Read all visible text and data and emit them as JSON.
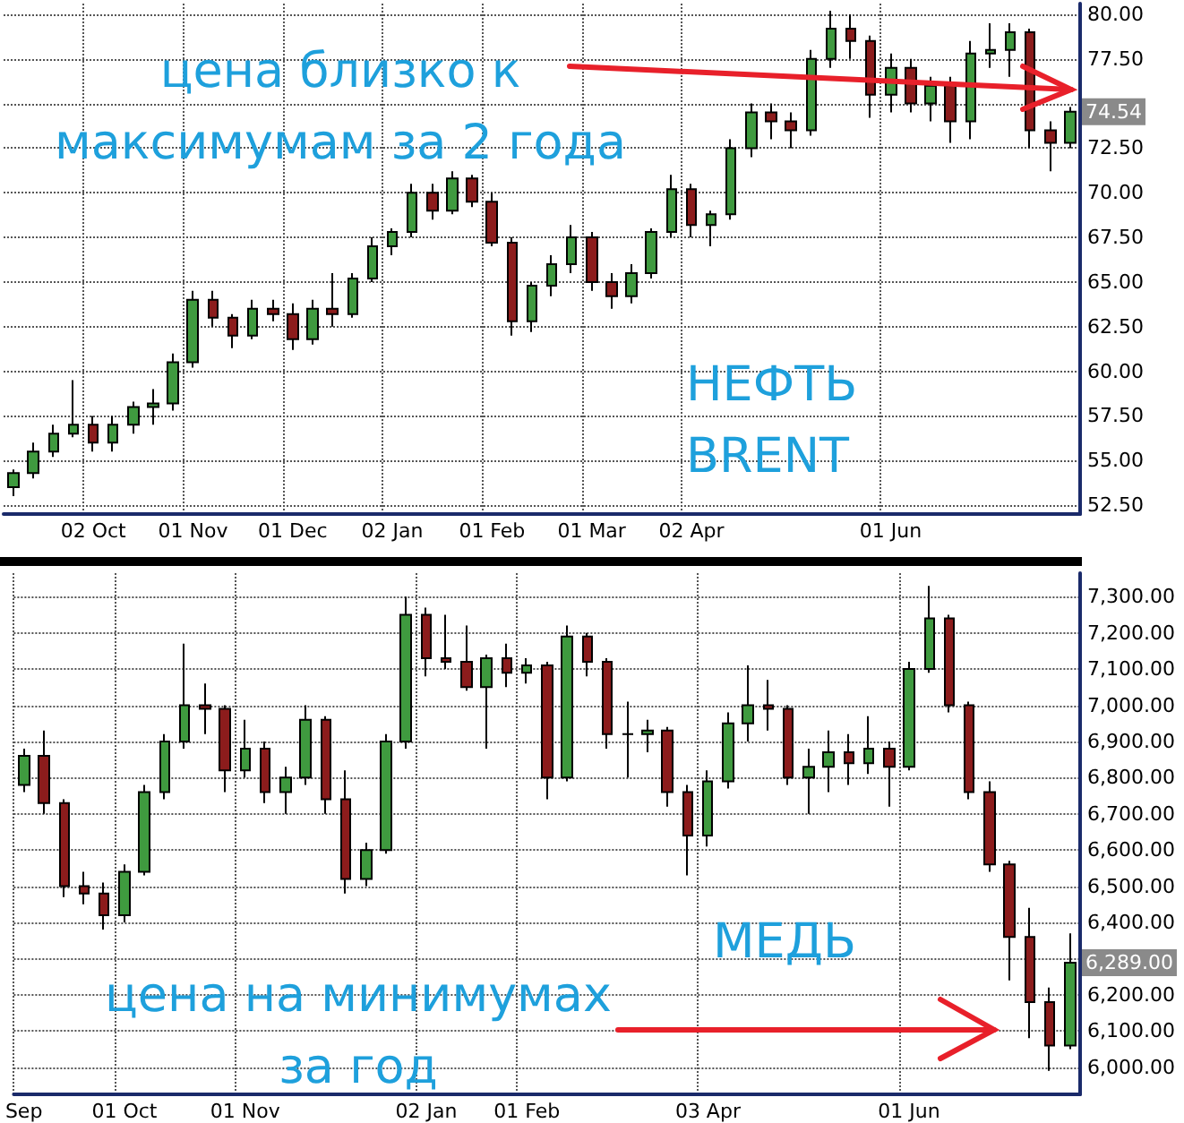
{
  "chart_data": [
    {
      "type": "candlestick",
      "categories": [
        null,
        null,
        null,
        null,
        "02 Oct",
        null,
        null,
        null,
        null,
        "01 Nov",
        null,
        null,
        null,
        null,
        "01 Dec",
        null,
        null,
        null,
        null,
        "02 Jan",
        null,
        null,
        null,
        null,
        "01 Feb",
        null,
        null,
        null,
        null,
        "01 Mar",
        null,
        null,
        null,
        null,
        "02 Apr",
        null,
        null,
        null,
        null,
        null,
        null,
        null,
        null,
        null,
        "01 Jun",
        null,
        null,
        null,
        null,
        null,
        null,
        null,
        null,
        null
      ],
      "ohlc": [
        [
          53.5,
          54.5,
          53,
          54.3
        ],
        [
          54.3,
          56,
          54,
          55.5
        ],
        [
          55.5,
          57,
          55.2,
          56.5
        ],
        [
          56.5,
          59.5,
          56.3,
          57
        ],
        [
          57,
          57.5,
          55.5,
          56
        ],
        [
          56,
          57.5,
          55.5,
          57
        ],
        [
          57,
          58.3,
          56.5,
          58
        ],
        [
          58,
          59,
          57,
          58.2
        ],
        [
          58.2,
          61,
          57.8,
          60.5
        ],
        [
          60.5,
          64.5,
          60.2,
          64
        ],
        [
          64,
          64.5,
          62.5,
          63
        ],
        [
          63,
          63.2,
          61.3,
          62
        ],
        [
          62,
          64,
          61.8,
          63.5
        ],
        [
          63.5,
          64,
          62.8,
          63.2
        ],
        [
          63.2,
          63.8,
          61.2,
          61.8
        ],
        [
          61.8,
          64,
          61.5,
          63.5
        ],
        [
          63.5,
          65.5,
          62.5,
          63.2
        ],
        [
          63.2,
          65.5,
          63,
          65.2
        ],
        [
          65.2,
          67.5,
          65,
          67
        ],
        [
          67,
          68,
          66.5,
          67.8
        ],
        [
          67.8,
          70.5,
          67.5,
          70
        ],
        [
          70,
          70.5,
          68.5,
          69
        ],
        [
          69,
          71.2,
          68.8,
          70.8
        ],
        [
          70.8,
          71,
          69.2,
          69.5
        ],
        [
          69.5,
          70,
          67,
          67.2
        ],
        [
          67.2,
          67.5,
          62,
          62.8
        ],
        [
          62.8,
          65,
          62.2,
          64.8
        ],
        [
          64.8,
          66.5,
          64.2,
          66
        ],
        [
          66,
          68.2,
          65.5,
          67.5
        ],
        [
          67.5,
          67.8,
          64.5,
          65
        ],
        [
          65,
          65.5,
          63.5,
          64.2
        ],
        [
          64.2,
          66,
          63.8,
          65.5
        ],
        [
          65.5,
          68,
          65.2,
          67.8
        ],
        [
          67.8,
          71,
          67.5,
          70.2
        ],
        [
          70.2,
          70.5,
          67.5,
          68.2
        ],
        [
          68.2,
          69,
          67,
          68.8
        ],
        [
          68.8,
          73,
          68.5,
          72.5
        ],
        [
          72.5,
          75,
          72,
          74.5
        ],
        [
          74.5,
          75,
          73,
          74
        ],
        [
          74,
          74.5,
          72.5,
          73.5
        ],
        [
          73.5,
          78,
          73.2,
          77.5
        ],
        [
          77.5,
          80.2,
          77,
          79.2
        ],
        [
          79.2,
          80,
          77.5,
          78.5
        ],
        [
          78.5,
          78.8,
          74.2,
          75.5
        ],
        [
          75.5,
          77.8,
          74.5,
          77
        ],
        [
          77,
          77.5,
          74.5,
          75
        ],
        [
          75,
          76.5,
          74,
          76
        ],
        [
          76,
          76.5,
          72.8,
          74
        ],
        [
          74,
          78.5,
          73,
          77.8
        ],
        [
          77.8,
          79.5,
          77,
          78
        ],
        [
          78,
          79.5,
          76.5,
          79
        ],
        [
          79,
          79.2,
          72.5,
          73.5
        ],
        [
          73.5,
          74,
          71.2,
          72.8
        ],
        [
          72.8,
          74.8,
          72.5,
          74.54
        ]
      ],
      "ylim": [
        52,
        80.6
      ],
      "yticks": [
        {
          "value": 52.5,
          "label": "52.50"
        },
        {
          "value": 55,
          "label": "55.00"
        },
        {
          "value": 57.5,
          "label": "57.50"
        },
        {
          "value": 60,
          "label": "60.00"
        },
        {
          "value": 62.5,
          "label": "62.50"
        },
        {
          "value": 65,
          "label": "65.00"
        },
        {
          "value": 67.5,
          "label": "67.50"
        },
        {
          "value": 70,
          "label": "70.00"
        },
        {
          "value": 72.5,
          "label": "72.50"
        },
        {
          "value": 75,
          "label": null
        },
        {
          "value": 77.5,
          "label": "77.50"
        },
        {
          "value": 80,
          "label": "80.00"
        }
      ],
      "grid": true,
      "annotations": [
        "цена близко к\nмаксимумам за 2 года",
        "НЕФТЬ\nBRENT",
        "74.54"
      ]
    },
    {
      "type": "candlestick",
      "categories": [
        "Sep",
        null,
        null,
        null,
        null,
        "01 Oct",
        null,
        null,
        null,
        null,
        null,
        "01 Nov",
        null,
        null,
        null,
        null,
        null,
        null,
        null,
        null,
        "02 Jan",
        null,
        null,
        null,
        null,
        "01 Feb",
        null,
        null,
        null,
        null,
        null,
        null,
        null,
        null,
        "03 Apr",
        null,
        null,
        null,
        null,
        null,
        null,
        null,
        null,
        null,
        "01 Jun",
        null,
        null,
        null,
        null,
        null,
        null,
        null,
        null
      ],
      "ohlc": [
        [
          6780,
          6880,
          6760,
          6860
        ],
        [
          6860,
          6930,
          6700,
          6730
        ],
        [
          6730,
          6740,
          6470,
          6500
        ],
        [
          6500,
          6540,
          6450,
          6480
        ],
        [
          6480,
          6510,
          6380,
          6420
        ],
        [
          6420,
          6560,
          6400,
          6540
        ],
        [
          6540,
          6780,
          6530,
          6760
        ],
        [
          6760,
          6920,
          6740,
          6900
        ],
        [
          6900,
          7170,
          6880,
          7000
        ],
        [
          7000,
          7060,
          6920,
          6990
        ],
        [
          6990,
          7000,
          6760,
          6820
        ],
        [
          6820,
          6960,
          6800,
          6880
        ],
        [
          6880,
          6900,
          6730,
          6760
        ],
        [
          6760,
          6830,
          6700,
          6800
        ],
        [
          6800,
          7000,
          6780,
          6960
        ],
        [
          6960,
          6970,
          6700,
          6740
        ],
        [
          6740,
          6820,
          6480,
          6520
        ],
        [
          6520,
          6620,
          6500,
          6600
        ],
        [
          6600,
          6920,
          6590,
          6900
        ],
        [
          6900,
          7300,
          6880,
          7250
        ],
        [
          7250,
          7270,
          7080,
          7130
        ],
        [
          7130,
          7250,
          7100,
          7120
        ],
        [
          7120,
          7220,
          7040,
          7050
        ],
        [
          7050,
          7140,
          6880,
          7130
        ],
        [
          7130,
          7170,
          7050,
          7090
        ],
        [
          7090,
          7130,
          7060,
          7110
        ],
        [
          7110,
          7120,
          6740,
          6800
        ],
        [
          6800,
          7220,
          6790,
          7190
        ],
        [
          7190,
          7200,
          7080,
          7120
        ],
        [
          7120,
          7130,
          6880,
          6920
        ],
        [
          6920,
          7010,
          6800,
          6920
        ],
        [
          6920,
          6960,
          6870,
          6930
        ],
        [
          6930,
          6940,
          6720,
          6760
        ],
        [
          6760,
          6780,
          6530,
          6640
        ],
        [
          6640,
          6820,
          6610,
          6790
        ],
        [
          6790,
          6980,
          6770,
          6950
        ],
        [
          6950,
          7110,
          6900,
          7000
        ],
        [
          7000,
          7070,
          6930,
          6990
        ],
        [
          6990,
          7000,
          6780,
          6800
        ],
        [
          6800,
          6880,
          6700,
          6830
        ],
        [
          6830,
          6930,
          6760,
          6870
        ],
        [
          6870,
          6920,
          6780,
          6840
        ],
        [
          6840,
          6970,
          6810,
          6880
        ],
        [
          6880,
          6900,
          6720,
          6830
        ],
        [
          6830,
          7120,
          6820,
          7100
        ],
        [
          7100,
          7330,
          7090,
          7240
        ],
        [
          7240,
          7250,
          6980,
          7000
        ],
        [
          7000,
          7010,
          6740,
          6760
        ],
        [
          6760,
          6790,
          6540,
          6560
        ],
        [
          6560,
          6570,
          6240,
          6360
        ],
        [
          6360,
          6440,
          6080,
          6180
        ],
        [
          6180,
          6220,
          5990,
          6060
        ],
        [
          6060,
          6370,
          6050,
          6289
        ]
      ],
      "ylim": [
        5925,
        7365
      ],
      "yticks": [
        {
          "value": 6000,
          "label": "6,000.00"
        },
        {
          "value": 6100,
          "label": "6,100.00"
        },
        {
          "value": 6200,
          "label": "6,200.00"
        },
        {
          "value": 6300,
          "label": null
        },
        {
          "value": 6400,
          "label": "6,400.00"
        },
        {
          "value": 6500,
          "label": "6,500.00"
        },
        {
          "value": 6600,
          "label": "6,600.00"
        },
        {
          "value": 6700,
          "label": "6,700.00"
        },
        {
          "value": 6800,
          "label": "6,800.00"
        },
        {
          "value": 6900,
          "label": "6,900.00"
        },
        {
          "value": 7000,
          "label": "7,000.00"
        },
        {
          "value": 7100,
          "label": "7,100.00"
        },
        {
          "value": 7200,
          "label": "7,200.00"
        },
        {
          "value": 7300,
          "label": "7,300.00"
        }
      ],
      "grid": true,
      "annotations": [
        "МЕДЬ",
        "цена на минимумах\nза год",
        "6,289.00"
      ]
    }
  ]
}
